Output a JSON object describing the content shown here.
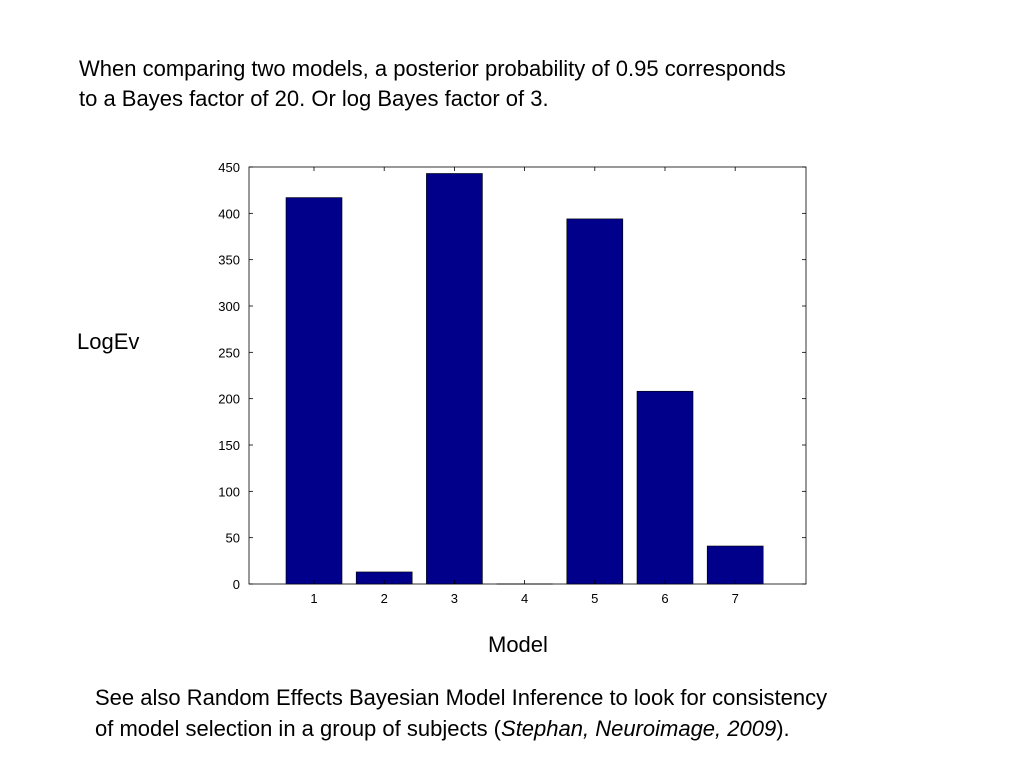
{
  "intro": {
    "line1": "When comparing two models, a posterior probability of 0.95 corresponds",
    "line2": "to a Bayes factor of 20. Or log Bayes factor of 3."
  },
  "footer": {
    "line1": "See also Random Effects Bayesian Model Inference to look for consistency",
    "line2_prefix": "of model selection in a group of subjects (",
    "citation": "Stephan, Neuroimage, 2009",
    "line2_suffix": ")."
  },
  "chart_data": {
    "type": "bar",
    "categories": [
      "1",
      "2",
      "3",
      "4",
      "5",
      "6",
      "7"
    ],
    "values": [
      417,
      13,
      443,
      0,
      394,
      208,
      41
    ],
    "title": "",
    "xlabel": "Model",
    "ylabel": "LogEv",
    "ylim": [
      0,
      450
    ],
    "yticks": [
      0,
      50,
      100,
      150,
      200,
      250,
      300,
      350,
      400,
      450
    ],
    "grid": false,
    "bar_color": "#00008B"
  }
}
